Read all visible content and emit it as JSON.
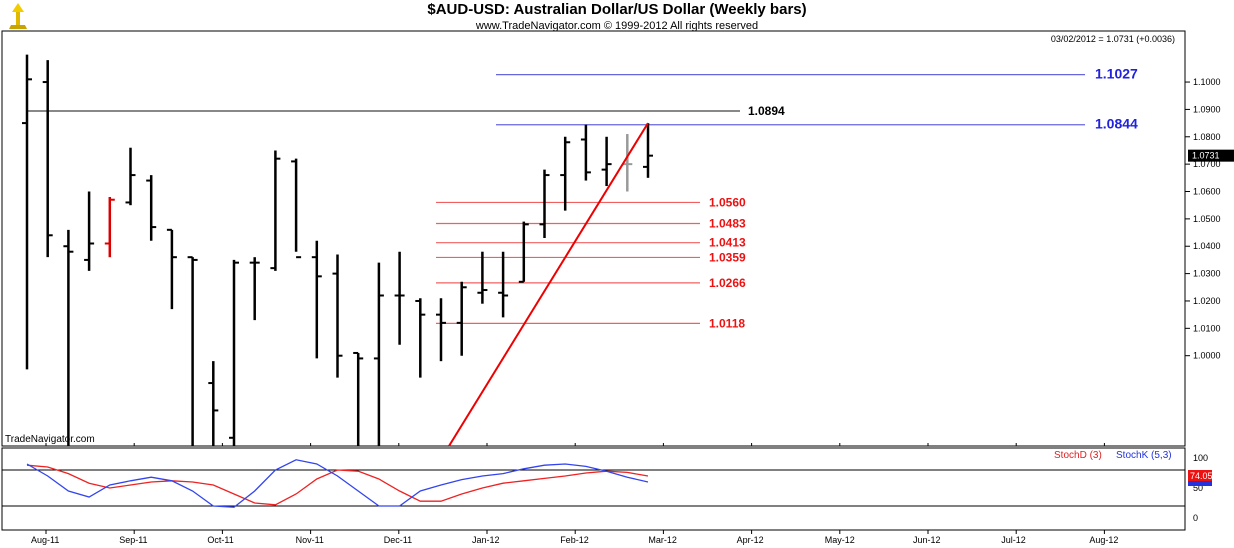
{
  "header": {
    "title": "$AUD-USD:  Australian Dollar/US Dollar  (Weekly bars)",
    "copyright": "www.TradeNavigator.com © 1999-2012 All rights reserved",
    "stamp": "03/02/2012 = 1.0731 (+0.0036)",
    "watermark": "TradeNavigator.com"
  },
  "colors": {
    "price_bars": "#000000",
    "highlight_bar": "#dd0000",
    "retracement_lines": "#f06060",
    "retracement_labels": "#ee1111",
    "target_lines": "#6666dd",
    "target_labels": "#2222dd",
    "resistance_line": "#888888",
    "trend_line": "#ee0000",
    "stoch_d": "#ee2222",
    "stoch_k": "#3344ee"
  },
  "chart_data": {
    "type": "ohlc",
    "x_ticks": [
      "Aug-11",
      "Sep-11",
      "Oct-11",
      "Nov-11",
      "Dec-11",
      "Jan-12",
      "Feb-12",
      "Mar-12",
      "Apr-12",
      "May-12",
      "Jun-12",
      "Jul-12",
      "Aug-12"
    ],
    "y_ticks": [
      "1.1000",
      "1.0900",
      "1.0800",
      "1.0700",
      "1.0600",
      "1.0500",
      "1.0400",
      "1.0300",
      "1.0200",
      "1.0100",
      "1.0000"
    ],
    "price_range": [
      0.967,
      1.115
    ],
    "last_price_label": "1.0731",
    "bars": [
      {
        "o": 1.085,
        "h": 1.11,
        "l": 0.995,
        "c": 1.101
      },
      {
        "o": 1.1,
        "h": 1.108,
        "l": 1.036,
        "c": 1.044
      },
      {
        "o": 1.04,
        "h": 1.046,
        "l": 0.967,
        "c": 1.038
      },
      {
        "o": 1.035,
        "h": 1.06,
        "l": 1.031,
        "c": 1.041
      },
      {
        "o": 1.041,
        "h": 1.058,
        "l": 1.036,
        "c": 1.057,
        "highlight": true
      },
      {
        "o": 1.056,
        "h": 1.076,
        "l": 1.055,
        "c": 1.066
      },
      {
        "o": 1.064,
        "h": 1.066,
        "l": 1.042,
        "c": 1.047
      },
      {
        "o": 1.046,
        "h": 1.046,
        "l": 1.017,
        "c": 1.036
      },
      {
        "o": 1.036,
        "h": 1.036,
        "l": 0.967,
        "c": 1.035
      },
      {
        "o": 0.99,
        "h": 0.998,
        "l": 0.967,
        "c": 0.98
      },
      {
        "o": 0.97,
        "h": 1.035,
        "l": 0.967,
        "c": 1.034
      },
      {
        "o": 1.034,
        "h": 1.036,
        "l": 1.013,
        "c": 1.034
      },
      {
        "o": 1.032,
        "h": 1.075,
        "l": 1.031,
        "c": 1.072
      },
      {
        "o": 1.071,
        "h": 1.072,
        "l": 1.038,
        "c": 1.036
      },
      {
        "o": 1.036,
        "h": 1.042,
        "l": 0.999,
        "c": 1.029
      },
      {
        "o": 1.03,
        "h": 1.037,
        "l": 0.992,
        "c": 1.0
      },
      {
        "o": 1.001,
        "h": 1.001,
        "l": 0.967,
        "c": 0.999
      },
      {
        "o": 0.999,
        "h": 1.034,
        "l": 0.967,
        "c": 1.022
      },
      {
        "o": 1.022,
        "h": 1.038,
        "l": 1.004,
        "c": 1.022
      },
      {
        "o": 1.02,
        "h": 1.021,
        "l": 0.992,
        "c": 1.015
      },
      {
        "o": 1.015,
        "h": 1.021,
        "l": 0.998,
        "c": 1.012
      },
      {
        "o": 1.012,
        "h": 1.027,
        "l": 1.0,
        "c": 1.025
      },
      {
        "o": 1.023,
        "h": 1.038,
        "l": 1.019,
        "c": 1.024
      },
      {
        "o": 1.023,
        "h": 1.038,
        "l": 1.014,
        "c": 1.022
      },
      {
        "o": 1.027,
        "h": 1.049,
        "l": 1.027,
        "c": 1.048
      },
      {
        "o": 1.048,
        "h": 1.068,
        "l": 1.043,
        "c": 1.066
      },
      {
        "o": 1.066,
        "h": 1.08,
        "l": 1.053,
        "c": 1.078
      },
      {
        "o": 1.079,
        "h": 1.0844,
        "l": 1.064,
        "c": 1.067
      },
      {
        "o": 1.068,
        "h": 1.08,
        "l": 1.062,
        "c": 1.07
      },
      {
        "o": 1.07,
        "h": 1.081,
        "l": 1.06,
        "c": 1.07,
        "grey": true
      },
      {
        "o": 1.069,
        "h": 1.085,
        "l": 1.065,
        "c": 1.0731
      }
    ],
    "levels": [
      {
        "label": "1.1027",
        "value": 1.1027,
        "kind": "target"
      },
      {
        "label": "1.0894",
        "value": 1.0894,
        "kind": "resistance"
      },
      {
        "label": "1.0844",
        "value": 1.0844,
        "kind": "target"
      },
      {
        "label": "1.0560",
        "value": 1.056,
        "kind": "retracement"
      },
      {
        "label": "1.0483",
        "value": 1.0483,
        "kind": "retracement"
      },
      {
        "label": "1.0413",
        "value": 1.0413,
        "kind": "retracement"
      },
      {
        "label": "1.0359",
        "value": 1.0359,
        "kind": "retracement"
      },
      {
        "label": "1.0266",
        "value": 1.0266,
        "kind": "retracement"
      },
      {
        "label": "1.0118",
        "value": 1.0118,
        "kind": "retracement"
      }
    ],
    "trend_line": {
      "from_bar": 20,
      "from_price": 0.967,
      "to_bar": 30,
      "to_price": 1.085
    },
    "indicator": {
      "legend_d": "StochD (3)",
      "legend_k": "StochK (5,3)",
      "y_ticks": [
        "100",
        "50",
        "0"
      ],
      "range": [
        0,
        100
      ],
      "value_label": "74.05",
      "stoch_d": [
        88,
        85,
        74,
        58,
        50,
        55,
        60,
        62,
        60,
        55,
        40,
        25,
        22,
        40,
        65,
        80,
        78,
        65,
        45,
        28,
        28,
        40,
        50,
        58,
        62,
        66,
        70,
        75,
        78,
        76,
        70
      ],
      "stoch_k": [
        90,
        70,
        45,
        35,
        55,
        62,
        68,
        62,
        45,
        20,
        18,
        45,
        80,
        97,
        90,
        70,
        45,
        20,
        20,
        45,
        55,
        64,
        70,
        74,
        82,
        88,
        90,
        86,
        78,
        68,
        60
      ]
    }
  }
}
